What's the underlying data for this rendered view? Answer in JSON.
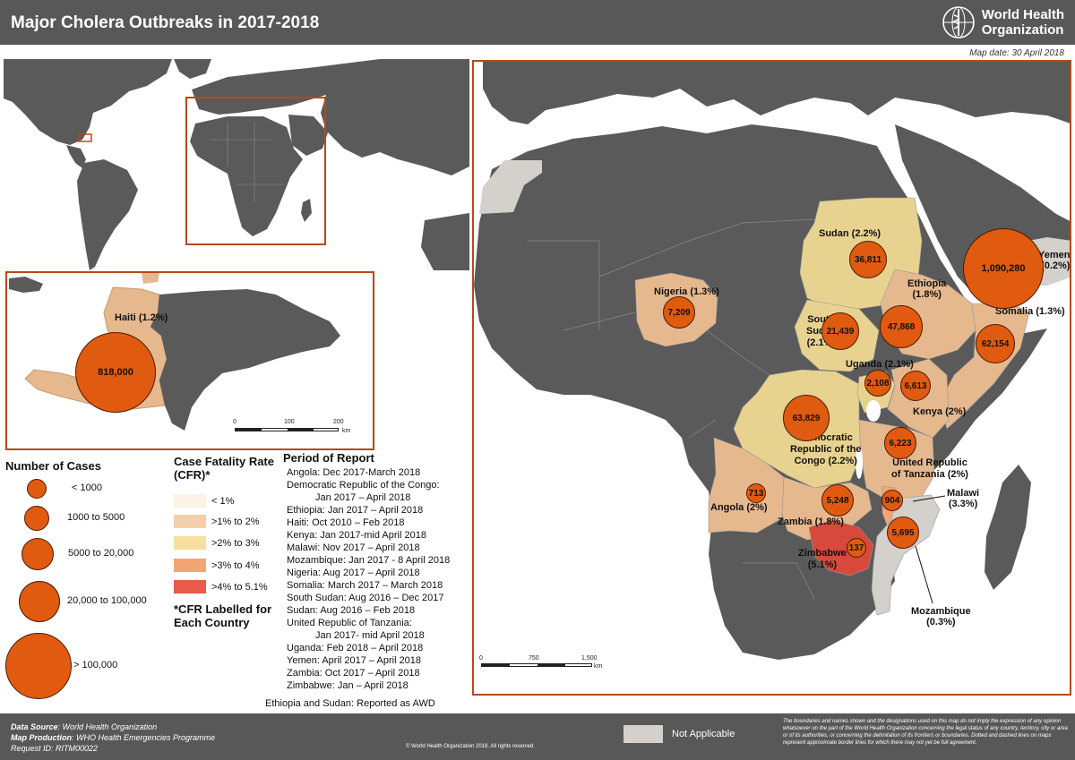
{
  "header": {
    "title": "Major Cholera Outbreaks in 2017-2018",
    "organization_line1": "World Health",
    "organization_line2": "Organization",
    "map_date": "Map date: 30 April 2018"
  },
  "haiti_inset": {
    "label": "Haiti (1.2%)",
    "cases": "818,000",
    "scale": {
      "t0": "0",
      "t1": "100",
      "t2": "200",
      "unit": "km"
    }
  },
  "countries": [
    {
      "id": "sudan",
      "label": "Sudan (2.2%)",
      "cases": "36,811"
    },
    {
      "id": "yemen",
      "label": "Yemen\n(0.2%)",
      "cases": "1,090,280"
    },
    {
      "id": "nigeria",
      "label": "Nigeria (1.3%)",
      "cases": "7,209"
    },
    {
      "id": "ethiopia",
      "label": "Ethiopia\n(1.8%)",
      "cases": "47,868"
    },
    {
      "id": "somalia",
      "label": "Somalia (1.3%)",
      "cases": "62,154"
    },
    {
      "id": "south-sudan",
      "label": "South\nSudan\n(2.1%)",
      "cases": "21,439"
    },
    {
      "id": "uganda",
      "label": "Uganda (2.1%)",
      "cases": "2,108"
    },
    {
      "id": "kenya",
      "label": "Kenya (2%)",
      "cases": "6,613"
    },
    {
      "id": "drc",
      "label": "Democratic\nRepublic of the\nCongo (2.2%)",
      "cases": "63,829"
    },
    {
      "id": "tanzania",
      "label": "United Republic\nof Tanzania (2%)",
      "cases": "6,223"
    },
    {
      "id": "angola",
      "label": "Angola (2%)",
      "cases": "713"
    },
    {
      "id": "zambia",
      "label": "Zambia (1.8%)",
      "cases": "5,248"
    },
    {
      "id": "malawi",
      "label": "Malawi\n(3.3%)",
      "cases": "904"
    },
    {
      "id": "zimbabwe",
      "label": "Zimbabwe\n(5.1%)",
      "cases": "137"
    },
    {
      "id": "mozambique",
      "label": "Mozambique\n(0.3%)",
      "cases": "5,695"
    }
  ],
  "africa_scale": {
    "t0": "0",
    "t1": "750",
    "t2": "1,500",
    "unit": "km"
  },
  "legend_cases": {
    "title": "Number of Cases",
    "items": [
      "< 1000",
      "1000 to 5000",
      "5000 to 20,000",
      "20,000 to 100,000",
      "> 100,000"
    ]
  },
  "legend_cfr": {
    "title": "Case Fatality Rate (CFR)*",
    "items": [
      {
        "label": "< 1%",
        "color": "#fdf2e6"
      },
      {
        "label": ">1% to 2%",
        "color": "#f4cfaa"
      },
      {
        "label": ">2% to 3%",
        "color": "#f6e09b"
      },
      {
        "label": ">3% to 4%",
        "color": "#f3a673"
      },
      {
        "label": ">4% to 5.1%",
        "color": "#ea5a4b"
      }
    ],
    "note": "*CFR Labelled for Each Country"
  },
  "period": {
    "title": "Period of Report",
    "rows": [
      "Angola: Dec 2017-March 2018",
      "Democratic Republic of the Congo:",
      "Jan 2017 – April 2018",
      "Ethiopia: Jan 2017 – April 2018",
      "Haiti: Oct 2010 – Feb 2018",
      "Kenya: Jan 2017-mid April 2018",
      "Malawi: Nov 2017 – April 2018",
      "Mozambique: Jan 2017 - 8 April 2018",
      "Nigeria: Aug 2017 – April 2018",
      "Somalia: March 2017 – March 2018",
      "South Sudan: Aug 2016 – Dec 2017",
      "Sudan: Aug 2016 – Feb 2018",
      "United Republic of Tanzania:",
      "Jan 2017- mid April 2018",
      "Uganda: Feb 2018 – April 2018",
      "Yemen: April 2017 – April 2018",
      "Zambia: Oct 2017 – April 2018",
      "Zimbabwe: Jan – April 2018"
    ],
    "footnote": "Ethiopia and Sudan: Reported as AWD"
  },
  "footer": {
    "data_source_label": "Data Source",
    "data_source_value": ": World Health Organization",
    "map_production_label": "Map Production",
    "map_production_value": ": WHO Health Emergencies Programme",
    "request_id": "Request ID: RITM00022",
    "copyright": "© World Health Organization  2018.  All rights reserved.",
    "not_applicable": "Not Applicable",
    "disclaimer": "The boundaries and names shown and the designations used on this map do not imply the expression of any opinion whatsoever on the part of the World Health Organization concerning the legal status of any country, territory, city or area or of its authorities, or concerning the delimitation of its frontiers or boundaries. Dotted and dashed lines on maps represent approximate border lines for which there may not yet be full agreement."
  },
  "colors": {
    "header_bg": "#585858",
    "land_dark": "#5a5a5a",
    "not_applicable": "#d4d0cc",
    "bubble": "#e05a10",
    "frame": "#b34a1a"
  }
}
